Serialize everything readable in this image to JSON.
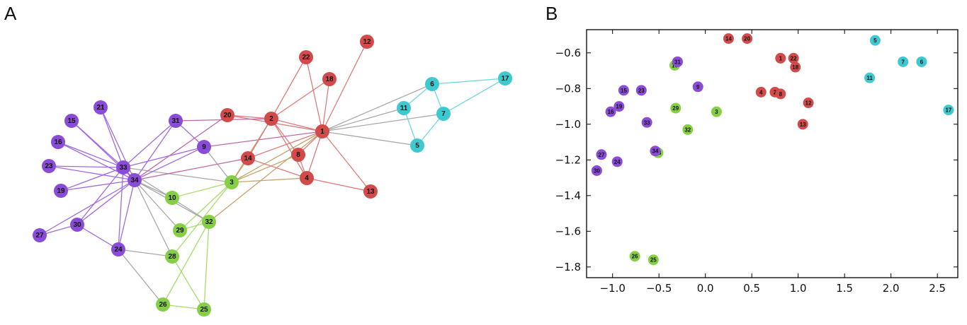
{
  "panels": {
    "a_letter": "A",
    "b_letter": "B"
  },
  "community_colors": {
    "purple": "#8a4bd6",
    "green": "#86cf45",
    "red": "#d24a4a",
    "cyan": "#3ec9d0"
  },
  "edge_colors": {
    "purple": "#a06be0",
    "green": "#a9db6e",
    "red": "#de7b7b",
    "cyan": "#6fd8dc",
    "between": "#a8a8a8",
    "green_red": "#c4a36a",
    "purple_red": "#c068a8"
  },
  "network": {
    "nodes": [
      {
        "id": "1",
        "group": "red"
      },
      {
        "id": "2",
        "group": "red"
      },
      {
        "id": "3",
        "group": "green"
      },
      {
        "id": "4",
        "group": "red"
      },
      {
        "id": "5",
        "group": "cyan"
      },
      {
        "id": "6",
        "group": "cyan"
      },
      {
        "id": "7",
        "group": "cyan"
      },
      {
        "id": "8",
        "group": "red"
      },
      {
        "id": "9",
        "group": "purple"
      },
      {
        "id": "10",
        "group": "green"
      },
      {
        "id": "11",
        "group": "cyan"
      },
      {
        "id": "12",
        "group": "red"
      },
      {
        "id": "13",
        "group": "red"
      },
      {
        "id": "14",
        "group": "red"
      },
      {
        "id": "15",
        "group": "purple"
      },
      {
        "id": "16",
        "group": "purple"
      },
      {
        "id": "17",
        "group": "cyan"
      },
      {
        "id": "18",
        "group": "red"
      },
      {
        "id": "19",
        "group": "purple"
      },
      {
        "id": "20",
        "group": "red"
      },
      {
        "id": "21",
        "group": "purple"
      },
      {
        "id": "22",
        "group": "red"
      },
      {
        "id": "23",
        "group": "purple"
      },
      {
        "id": "24",
        "group": "purple"
      },
      {
        "id": "25",
        "group": "green"
      },
      {
        "id": "26",
        "group": "green"
      },
      {
        "id": "27",
        "group": "purple"
      },
      {
        "id": "28",
        "group": "green"
      },
      {
        "id": "29",
        "group": "green"
      },
      {
        "id": "30",
        "group": "purple"
      },
      {
        "id": "31",
        "group": "purple"
      },
      {
        "id": "32",
        "group": "green"
      },
      {
        "id": "33",
        "group": "purple"
      },
      {
        "id": "34",
        "group": "purple"
      }
    ],
    "edges": [
      [
        "1",
        "2"
      ],
      [
        "1",
        "3"
      ],
      [
        "1",
        "4"
      ],
      [
        "1",
        "5"
      ],
      [
        "1",
        "6"
      ],
      [
        "1",
        "7"
      ],
      [
        "1",
        "8"
      ],
      [
        "1",
        "9"
      ],
      [
        "1",
        "11"
      ],
      [
        "1",
        "12"
      ],
      [
        "1",
        "13"
      ],
      [
        "1",
        "14"
      ],
      [
        "1",
        "18"
      ],
      [
        "1",
        "20"
      ],
      [
        "1",
        "22"
      ],
      [
        "1",
        "32"
      ],
      [
        "2",
        "3"
      ],
      [
        "2",
        "4"
      ],
      [
        "2",
        "8"
      ],
      [
        "2",
        "14"
      ],
      [
        "2",
        "18"
      ],
      [
        "2",
        "20"
      ],
      [
        "2",
        "22"
      ],
      [
        "2",
        "31"
      ],
      [
        "3",
        "4"
      ],
      [
        "3",
        "8"
      ],
      [
        "3",
        "9"
      ],
      [
        "3",
        "10"
      ],
      [
        "3",
        "14"
      ],
      [
        "3",
        "28"
      ],
      [
        "3",
        "29"
      ],
      [
        "3",
        "33"
      ],
      [
        "4",
        "8"
      ],
      [
        "4",
        "13"
      ],
      [
        "4",
        "14"
      ],
      [
        "5",
        "7"
      ],
      [
        "5",
        "11"
      ],
      [
        "6",
        "7"
      ],
      [
        "6",
        "11"
      ],
      [
        "6",
        "17"
      ],
      [
        "7",
        "17"
      ],
      [
        "9",
        "31"
      ],
      [
        "9",
        "33"
      ],
      [
        "9",
        "34"
      ],
      [
        "10",
        "34"
      ],
      [
        "14",
        "34"
      ],
      [
        "15",
        "33"
      ],
      [
        "15",
        "34"
      ],
      [
        "16",
        "33"
      ],
      [
        "16",
        "34"
      ],
      [
        "19",
        "33"
      ],
      [
        "19",
        "34"
      ],
      [
        "20",
        "34"
      ],
      [
        "21",
        "33"
      ],
      [
        "21",
        "34"
      ],
      [
        "23",
        "33"
      ],
      [
        "23",
        "34"
      ],
      [
        "24",
        "26"
      ],
      [
        "24",
        "28"
      ],
      [
        "24",
        "30"
      ],
      [
        "24",
        "33"
      ],
      [
        "24",
        "34"
      ],
      [
        "25",
        "26"
      ],
      [
        "25",
        "28"
      ],
      [
        "25",
        "32"
      ],
      [
        "26",
        "32"
      ],
      [
        "27",
        "30"
      ],
      [
        "27",
        "34"
      ],
      [
        "28",
        "34"
      ],
      [
        "29",
        "32"
      ],
      [
        "29",
        "34"
      ],
      [
        "30",
        "33"
      ],
      [
        "30",
        "34"
      ],
      [
        "31",
        "33"
      ],
      [
        "31",
        "34"
      ],
      [
        "32",
        "33"
      ],
      [
        "32",
        "34"
      ],
      [
        "33",
        "34"
      ]
    ]
  },
  "chart_data": {
    "type": "scatter",
    "title": "",
    "xlabel": "",
    "ylabel": "",
    "xlim": [
      -1.28,
      2.72
    ],
    "ylim": [
      -1.86,
      -0.47
    ],
    "xticks": [
      -1.0,
      -0.5,
      0.0,
      0.5,
      1.0,
      1.5,
      2.0,
      2.5
    ],
    "xtick_labels": [
      "−1.0",
      "−0.5",
      "0.0",
      "0.5",
      "1.0",
      "1.5",
      "2.0",
      "2.5"
    ],
    "yticks": [
      -0.6,
      -0.8,
      -1.0,
      -1.2,
      -1.4,
      -1.6,
      -1.8
    ],
    "ytick_labels": [
      "−0.6",
      "−0.8",
      "−1.0",
      "−1.2",
      "−1.4",
      "−1.6",
      "−1.8"
    ],
    "grid": false,
    "points": [
      {
        "label": "1",
        "x": 0.81,
        "y": -0.63,
        "group": "red"
      },
      {
        "label": "2",
        "x": 0.75,
        "y": -0.82,
        "group": "red"
      },
      {
        "label": "3",
        "x": 0.12,
        "y": -0.93,
        "group": "green"
      },
      {
        "label": "4",
        "x": 0.6,
        "y": -0.82,
        "group": "red"
      },
      {
        "label": "5",
        "x": 1.83,
        "y": -0.53,
        "group": "cyan"
      },
      {
        "label": "6",
        "x": 2.33,
        "y": -0.65,
        "group": "cyan"
      },
      {
        "label": "7",
        "x": 2.13,
        "y": -0.65,
        "group": "cyan"
      },
      {
        "label": "8",
        "x": 0.81,
        "y": -0.83,
        "group": "red"
      },
      {
        "label": "9",
        "x": -0.08,
        "y": -0.79,
        "group": "purple"
      },
      {
        "label": "10",
        "x": -0.33,
        "y": -0.67,
        "group": "green"
      },
      {
        "label": "11",
        "x": 1.77,
        "y": -0.74,
        "group": "cyan"
      },
      {
        "label": "12",
        "x": 1.11,
        "y": -0.88,
        "group": "red"
      },
      {
        "label": "13",
        "x": 1.05,
        "y": -1.0,
        "group": "red"
      },
      {
        "label": "14",
        "x": 0.25,
        "y": -0.52,
        "group": "red"
      },
      {
        "label": "15",
        "x": -0.88,
        "y": -0.81,
        "group": "purple"
      },
      {
        "label": "16",
        "x": -1.02,
        "y": -0.93,
        "group": "purple"
      },
      {
        "label": "17",
        "x": 2.62,
        "y": -0.92,
        "group": "cyan"
      },
      {
        "label": "18",
        "x": 0.97,
        "y": -0.68,
        "group": "red"
      },
      {
        "label": "19",
        "x": -0.93,
        "y": -0.9,
        "group": "purple"
      },
      {
        "label": "20",
        "x": 0.45,
        "y": -0.52,
        "group": "red"
      },
      {
        "label": "21",
        "x": -0.3,
        "y": -0.65,
        "group": "purple"
      },
      {
        "label": "22",
        "x": 0.95,
        "y": -0.63,
        "group": "red"
      },
      {
        "label": "23",
        "x": -0.69,
        "y": -0.81,
        "group": "purple"
      },
      {
        "label": "24",
        "x": -0.95,
        "y": -1.21,
        "group": "purple"
      },
      {
        "label": "25",
        "x": -0.56,
        "y": -1.76,
        "group": "green"
      },
      {
        "label": "26",
        "x": -0.76,
        "y": -1.74,
        "group": "green"
      },
      {
        "label": "27",
        "x": -1.12,
        "y": -1.17,
        "group": "purple"
      },
      {
        "label": "28",
        "x": -0.51,
        "y": -1.16,
        "group": "green"
      },
      {
        "label": "29",
        "x": -0.32,
        "y": -0.91,
        "group": "green"
      },
      {
        "label": "30",
        "x": -1.17,
        "y": -1.26,
        "group": "purple"
      },
      {
        "label": "31",
        "x": -0.3,
        "y": -0.65,
        "group": "purple"
      },
      {
        "label": "32",
        "x": -0.19,
        "y": -1.03,
        "group": "green"
      },
      {
        "label": "33",
        "x": -0.63,
        "y": -0.99,
        "group": "purple"
      },
      {
        "label": "34",
        "x": -0.54,
        "y": -1.15,
        "group": "purple"
      }
    ]
  }
}
